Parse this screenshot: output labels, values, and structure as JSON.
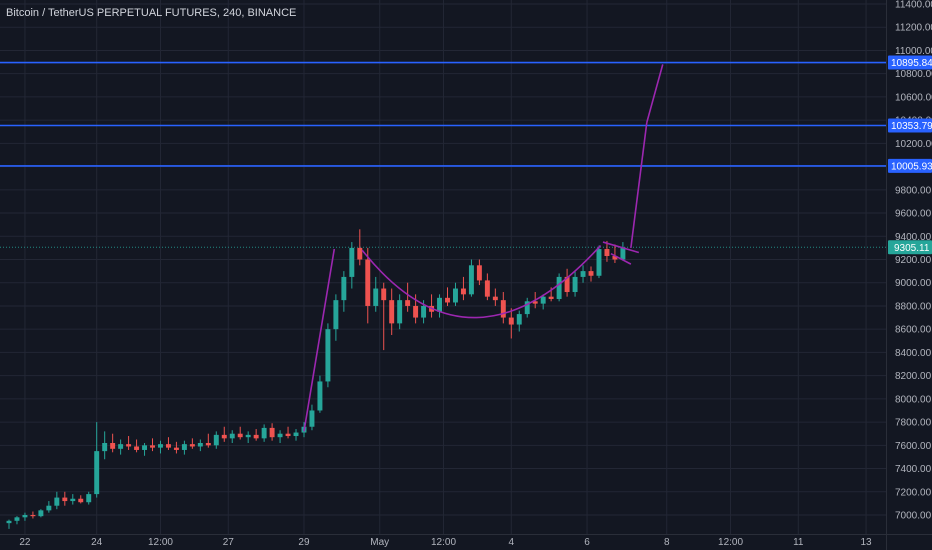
{
  "header": {
    "title": "Bitcoin / TetherUS PERPETUAL FUTURES, 240, BINANCE"
  },
  "colors": {
    "background": "#131722",
    "grid": "#232735",
    "text": "#b2b5be",
    "up": "#26a69a",
    "down": "#ef5350",
    "level": "#2962ff",
    "drawing": "#9c27b0",
    "price_tag": "#26a69a"
  },
  "chart_data": {
    "type": "candlestick",
    "title": "Bitcoin / TetherUS PERPETUAL FUTURES, 240, BINANCE",
    "symbol": "Bitcoin / TetherUS PERPETUAL FUTURES",
    "interval": "240",
    "exchange": "BINANCE",
    "ylim": [
      6900,
      11500
    ],
    "yticks": [
      7000,
      7200,
      7400,
      7600,
      7800,
      8000,
      8200,
      8400,
      8600,
      8800,
      9000,
      9200,
      9400,
      9600,
      9800,
      10000,
      10200,
      10400,
      10600,
      10800,
      11000,
      11200,
      11400
    ],
    "ytick_labels": [
      "7000.00",
      "7200.00",
      "7400.00",
      "7600.00",
      "7800.00",
      "8000.00",
      "8200.00",
      "8400.00",
      "8600.00",
      "8800.00",
      "9000.00",
      "9200.00",
      "9400.00",
      "9600.00",
      "9800.00",
      "10000.00",
      "10200.00",
      "10400.00",
      "10600.00",
      "10800.00",
      "11000.00",
      "11200.00",
      "11400.00"
    ],
    "xlim": [
      0,
      110
    ],
    "xticks": [
      {
        "x": 2.0,
        "label": "22"
      },
      {
        "x": 11.0,
        "label": "24"
      },
      {
        "x": 19.0,
        "label": "12:00"
      },
      {
        "x": 27.5,
        "label": "27"
      },
      {
        "x": 37.0,
        "label": "29"
      },
      {
        "x": 46.5,
        "label": "May"
      },
      {
        "x": 54.5,
        "label": "12:00"
      },
      {
        "x": 63.0,
        "label": "4"
      },
      {
        "x": 72.5,
        "label": "6"
      },
      {
        "x": 82.5,
        "label": "8"
      },
      {
        "x": 90.5,
        "label": "12:00"
      },
      {
        "x": 99.0,
        "label": "11"
      },
      {
        "x": 107.5,
        "label": "13"
      }
    ],
    "horizontal_levels": [
      {
        "price": 10895.84,
        "label": "10895.84"
      },
      {
        "price": 10353.79,
        "label": "10353.79"
      },
      {
        "price": 10005.93,
        "label": "10005.93"
      }
    ],
    "last_price": {
      "price": 9305.11,
      "label": "9305.11"
    },
    "candles": [
      {
        "x": 0,
        "o": 6930,
        "h": 6960,
        "l": 6880,
        "c": 6950
      },
      {
        "x": 1,
        "o": 6950,
        "h": 6990,
        "l": 6920,
        "c": 6980
      },
      {
        "x": 2,
        "o": 6980,
        "h": 7020,
        "l": 6950,
        "c": 7000
      },
      {
        "x": 3,
        "o": 7000,
        "h": 7030,
        "l": 6970,
        "c": 6990
      },
      {
        "x": 4,
        "o": 6990,
        "h": 7050,
        "l": 6980,
        "c": 7040
      },
      {
        "x": 5,
        "o": 7040,
        "h": 7120,
        "l": 7020,
        "c": 7080
      },
      {
        "x": 6,
        "o": 7080,
        "h": 7200,
        "l": 7050,
        "c": 7150
      },
      {
        "x": 7,
        "o": 7150,
        "h": 7200,
        "l": 7080,
        "c": 7120
      },
      {
        "x": 8,
        "o": 7120,
        "h": 7180,
        "l": 7090,
        "c": 7140
      },
      {
        "x": 9,
        "o": 7140,
        "h": 7170,
        "l": 7100,
        "c": 7110
      },
      {
        "x": 10,
        "o": 7110,
        "h": 7200,
        "l": 7090,
        "c": 7180
      },
      {
        "x": 11,
        "o": 7180,
        "h": 7800,
        "l": 7150,
        "c": 7550
      },
      {
        "x": 12,
        "o": 7550,
        "h": 7720,
        "l": 7480,
        "c": 7620
      },
      {
        "x": 13,
        "o": 7620,
        "h": 7700,
        "l": 7540,
        "c": 7570
      },
      {
        "x": 14,
        "o": 7570,
        "h": 7650,
        "l": 7520,
        "c": 7610
      },
      {
        "x": 15,
        "o": 7610,
        "h": 7680,
        "l": 7560,
        "c": 7590
      },
      {
        "x": 16,
        "o": 7590,
        "h": 7650,
        "l": 7540,
        "c": 7560
      },
      {
        "x": 17,
        "o": 7560,
        "h": 7620,
        "l": 7510,
        "c": 7600
      },
      {
        "x": 18,
        "o": 7600,
        "h": 7660,
        "l": 7550,
        "c": 7580
      },
      {
        "x": 19,
        "o": 7580,
        "h": 7640,
        "l": 7530,
        "c": 7610
      },
      {
        "x": 20,
        "o": 7610,
        "h": 7670,
        "l": 7560,
        "c": 7580
      },
      {
        "x": 21,
        "o": 7580,
        "h": 7630,
        "l": 7530,
        "c": 7560
      },
      {
        "x": 22,
        "o": 7560,
        "h": 7640,
        "l": 7520,
        "c": 7610
      },
      {
        "x": 23,
        "o": 7610,
        "h": 7660,
        "l": 7570,
        "c": 7590
      },
      {
        "x": 24,
        "o": 7590,
        "h": 7650,
        "l": 7550,
        "c": 7620
      },
      {
        "x": 25,
        "o": 7620,
        "h": 7700,
        "l": 7580,
        "c": 7600
      },
      {
        "x": 26,
        "o": 7600,
        "h": 7720,
        "l": 7570,
        "c": 7690
      },
      {
        "x": 27,
        "o": 7690,
        "h": 7760,
        "l": 7630,
        "c": 7660
      },
      {
        "x": 28,
        "o": 7660,
        "h": 7730,
        "l": 7620,
        "c": 7700
      },
      {
        "x": 29,
        "o": 7700,
        "h": 7760,
        "l": 7650,
        "c": 7670
      },
      {
        "x": 30,
        "o": 7670,
        "h": 7720,
        "l": 7620,
        "c": 7690
      },
      {
        "x": 31,
        "o": 7690,
        "h": 7740,
        "l": 7640,
        "c": 7660
      },
      {
        "x": 32,
        "o": 7660,
        "h": 7780,
        "l": 7630,
        "c": 7750
      },
      {
        "x": 33,
        "o": 7750,
        "h": 7790,
        "l": 7640,
        "c": 7670
      },
      {
        "x": 34,
        "o": 7670,
        "h": 7730,
        "l": 7620,
        "c": 7700
      },
      {
        "x": 35,
        "o": 7700,
        "h": 7760,
        "l": 7660,
        "c": 7680
      },
      {
        "x": 36,
        "o": 7680,
        "h": 7740,
        "l": 7640,
        "c": 7710
      },
      {
        "x": 37,
        "o": 7710,
        "h": 7800,
        "l": 7670,
        "c": 7760
      },
      {
        "x": 38,
        "o": 7760,
        "h": 7950,
        "l": 7730,
        "c": 7900
      },
      {
        "x": 39,
        "o": 7900,
        "h": 8200,
        "l": 7880,
        "c": 8150
      },
      {
        "x": 40,
        "o": 8150,
        "h": 8650,
        "l": 8100,
        "c": 8600
      },
      {
        "x": 41,
        "o": 8600,
        "h": 8900,
        "l": 8500,
        "c": 8850
      },
      {
        "x": 42,
        "o": 8850,
        "h": 9100,
        "l": 8750,
        "c": 9050
      },
      {
        "x": 43,
        "o": 9050,
        "h": 9350,
        "l": 8950,
        "c": 9300
      },
      {
        "x": 44,
        "o": 9300,
        "h": 9460,
        "l": 9150,
        "c": 9200
      },
      {
        "x": 45,
        "o": 9200,
        "h": 9300,
        "l": 8650,
        "c": 8800
      },
      {
        "x": 46,
        "o": 8800,
        "h": 9050,
        "l": 8750,
        "c": 8950
      },
      {
        "x": 47,
        "o": 8950,
        "h": 9000,
        "l": 8420,
        "c": 8850
      },
      {
        "x": 48,
        "o": 8850,
        "h": 8950,
        "l": 8550,
        "c": 8650
      },
      {
        "x": 49,
        "o": 8650,
        "h": 8900,
        "l": 8600,
        "c": 8850
      },
      {
        "x": 50,
        "o": 8850,
        "h": 9000,
        "l": 8750,
        "c": 8800
      },
      {
        "x": 51,
        "o": 8800,
        "h": 8900,
        "l": 8650,
        "c": 8700
      },
      {
        "x": 52,
        "o": 8700,
        "h": 8850,
        "l": 8650,
        "c": 8800
      },
      {
        "x": 53,
        "o": 8800,
        "h": 8900,
        "l": 8700,
        "c": 8750
      },
      {
        "x": 54,
        "o": 8750,
        "h": 8900,
        "l": 8700,
        "c": 8870
      },
      {
        "x": 55,
        "o": 8870,
        "h": 8960,
        "l": 8800,
        "c": 8830
      },
      {
        "x": 56,
        "o": 8830,
        "h": 9000,
        "l": 8800,
        "c": 8950
      },
      {
        "x": 57,
        "o": 8950,
        "h": 9050,
        "l": 8850,
        "c": 8900
      },
      {
        "x": 58,
        "o": 8900,
        "h": 9200,
        "l": 8880,
        "c": 9150
      },
      {
        "x": 59,
        "o": 9150,
        "h": 9200,
        "l": 8980,
        "c": 9020
      },
      {
        "x": 60,
        "o": 9020,
        "h": 9080,
        "l": 8850,
        "c": 8880
      },
      {
        "x": 61,
        "o": 8880,
        "h": 8950,
        "l": 8800,
        "c": 8850
      },
      {
        "x": 62,
        "o": 8850,
        "h": 8920,
        "l": 8650,
        "c": 8700
      },
      {
        "x": 63,
        "o": 8700,
        "h": 8780,
        "l": 8520,
        "c": 8640
      },
      {
        "x": 64,
        "o": 8640,
        "h": 8760,
        "l": 8580,
        "c": 8730
      },
      {
        "x": 65,
        "o": 8730,
        "h": 8870,
        "l": 8700,
        "c": 8840
      },
      {
        "x": 66,
        "o": 8840,
        "h": 8920,
        "l": 8780,
        "c": 8820
      },
      {
        "x": 67,
        "o": 8820,
        "h": 8900,
        "l": 8770,
        "c": 8880
      },
      {
        "x": 68,
        "o": 8880,
        "h": 8960,
        "l": 8840,
        "c": 8860
      },
      {
        "x": 69,
        "o": 8860,
        "h": 9080,
        "l": 8840,
        "c": 9050
      },
      {
        "x": 70,
        "o": 9050,
        "h": 9120,
        "l": 8880,
        "c": 8920
      },
      {
        "x": 71,
        "o": 8920,
        "h": 9100,
        "l": 8880,
        "c": 9050
      },
      {
        "x": 72,
        "o": 9050,
        "h": 9150,
        "l": 9000,
        "c": 9100
      },
      {
        "x": 73,
        "o": 9100,
        "h": 9140,
        "l": 9010,
        "c": 9060
      },
      {
        "x": 74,
        "o": 9060,
        "h": 9320,
        "l": 9040,
        "c": 9290
      },
      {
        "x": 75,
        "o": 9290,
        "h": 9360,
        "l": 9180,
        "c": 9230
      },
      {
        "x": 76,
        "o": 9230,
        "h": 9330,
        "l": 9170,
        "c": 9200
      },
      {
        "x": 77,
        "o": 9200,
        "h": 9350,
        "l": 9190,
        "c": 9305
      }
    ]
  }
}
